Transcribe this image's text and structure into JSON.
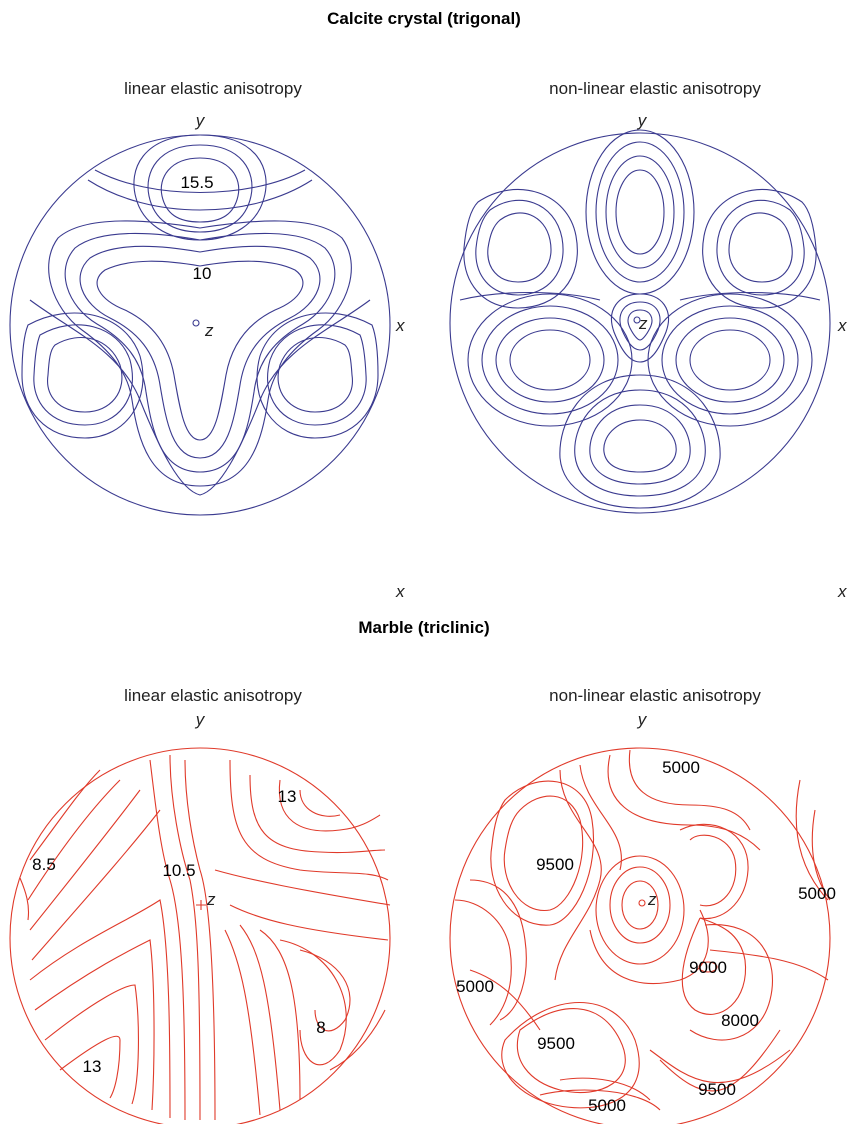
{
  "sections": [
    {
      "title": "Calcite crystal (trigonal)",
      "color": "#3a3a8f",
      "panels": [
        {
          "subtitle": "linear elastic anisotropy",
          "axes": {
            "y": "y",
            "x": "x",
            "z": "z"
          },
          "contour_labels": [
            "15.5",
            "10"
          ]
        },
        {
          "subtitle": "non-linear elastic anisotropy",
          "axes": {
            "y": "y",
            "x": "x",
            "z": "z"
          },
          "contour_labels": []
        }
      ]
    },
    {
      "title": "Marble (triclinic)",
      "color": "#e03a2a",
      "panels": [
        {
          "subtitle": "linear elastic anisotropy",
          "axes": {
            "y": "y",
            "x": "x",
            "z": "z"
          },
          "contour_labels": [
            "13",
            "8.5",
            "10.5",
            "8",
            "13"
          ]
        },
        {
          "subtitle": "non-linear elastic anisotropy",
          "axes": {
            "y": "y",
            "x": "x",
            "z": "z"
          },
          "contour_labels": [
            "5000",
            "9500",
            "5000",
            "9000",
            "5000",
            "8000",
            "9500",
            "9500",
            "5000"
          ]
        }
      ]
    }
  ]
}
